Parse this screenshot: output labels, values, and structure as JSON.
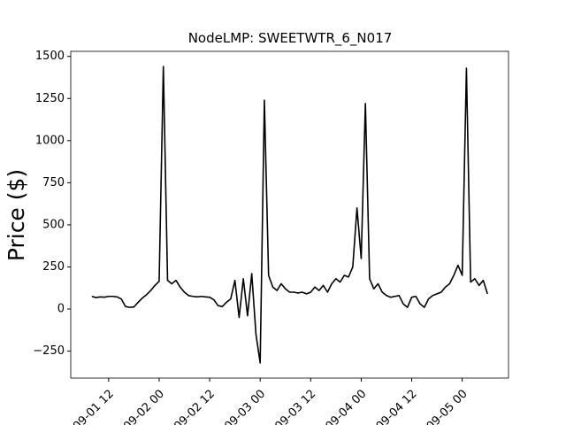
{
  "chart_data": {
    "type": "line",
    "title": "NodeLMP: SWEETWTR_6_N017",
    "y_label": "Price ($)",
    "x": [
      "09-01 08",
      "09-01 09",
      "09-01 10",
      "09-01 11",
      "09-01 12",
      "09-01 13",
      "09-01 14",
      "09-01 15",
      "09-01 16",
      "09-01 17",
      "09-01 18",
      "09-01 19",
      "09-01 20",
      "09-01 21",
      "09-01 22",
      "09-01 23",
      "09-02 00",
      "09-02 01",
      "09-02 02",
      "09-02 03",
      "09-02 04",
      "09-02 05",
      "09-02 06",
      "09-02 07",
      "09-02 08",
      "09-02 09",
      "09-02 10",
      "09-02 11",
      "09-02 12",
      "09-02 13",
      "09-02 14",
      "09-02 15",
      "09-02 16",
      "09-02 17",
      "09-02 18",
      "09-02 19",
      "09-02 20",
      "09-02 21",
      "09-02 22",
      "09-02 23",
      "09-03 00",
      "09-03 01",
      "09-03 02",
      "09-03 03",
      "09-03 04",
      "09-03 05",
      "09-03 06",
      "09-03 07",
      "09-03 08",
      "09-03 09",
      "09-03 10",
      "09-03 11",
      "09-03 12",
      "09-03 13",
      "09-03 14",
      "09-03 15",
      "09-03 16",
      "09-03 17",
      "09-03 18",
      "09-03 19",
      "09-03 20",
      "09-03 21",
      "09-03 22",
      "09-03 23",
      "09-04 00",
      "09-04 01",
      "09-04 02",
      "09-04 03",
      "09-04 04",
      "09-04 05",
      "09-04 06",
      "09-04 07",
      "09-04 08",
      "09-04 09",
      "09-04 10",
      "09-04 11",
      "09-04 12",
      "09-04 13",
      "09-04 14",
      "09-04 15",
      "09-04 16",
      "09-04 17",
      "09-04 18",
      "09-04 19",
      "09-04 20",
      "09-04 21",
      "09-04 22",
      "09-04 23",
      "09-05 00",
      "09-05 01",
      "09-05 02",
      "09-05 03",
      "09-05 04",
      "09-05 05",
      "09-05 06"
    ],
    "series": [
      {
        "color": "#000000",
        "values": [
          75,
          68,
          72,
          70,
          75,
          75,
          72,
          60,
          15,
          10,
          12,
          40,
          65,
          85,
          110,
          140,
          165,
          1440,
          170,
          150,
          170,
          130,
          100,
          80,
          75,
          72,
          75,
          72,
          70,
          55,
          20,
          15,
          40,
          60,
          170,
          -50,
          180,
          -40,
          210,
          -150,
          -320,
          1240,
          200,
          130,
          110,
          150,
          120,
          100,
          100,
          95,
          100,
          90,
          100,
          130,
          110,
          140,
          100,
          150,
          180,
          160,
          200,
          190,
          250,
          600,
          300,
          1220,
          180,
          120,
          150,
          100,
          80,
          70,
          75,
          80,
          30,
          10,
          70,
          75,
          30,
          10,
          60,
          80,
          90,
          100,
          130,
          150,
          200,
          260,
          200,
          1430,
          160,
          180,
          140,
          170,
          90
        ]
      }
    ],
    "xlim": [
      "09-01 03",
      "09-05 11"
    ],
    "xticks": [
      "09-01 12",
      "09-02 00",
      "09-02 12",
      "09-03 00",
      "09-03 12",
      "09-04 00",
      "09-04 12",
      "09-05 00"
    ],
    "ylim": [
      -410,
      1530
    ],
    "yticks": [
      {
        "value": -250,
        "label": "−250"
      },
      0,
      250,
      500,
      750,
      1000,
      1250,
      1500
    ]
  }
}
